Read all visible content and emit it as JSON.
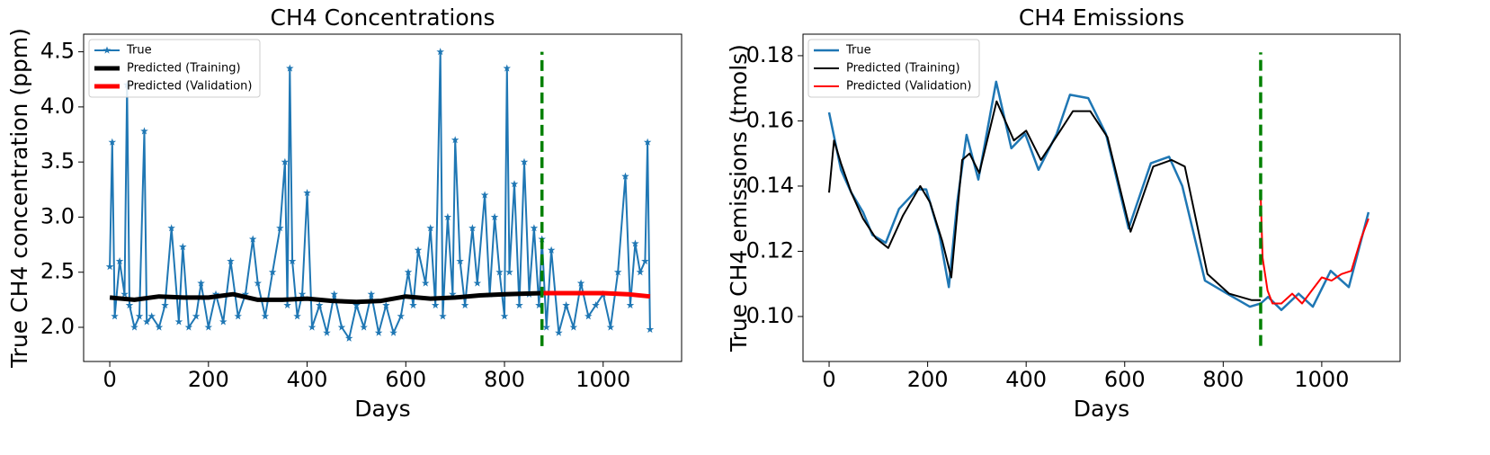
{
  "chart_data": [
    {
      "type": "line",
      "title": "CH4 Concentrations",
      "xlabel": "Days",
      "ylabel": "True CH4 concentration (ppm)",
      "xlim": [
        -53,
        1159
      ],
      "xticks": [
        0,
        200,
        400,
        600,
        800,
        1000
      ],
      "ylim": [
        1.69,
        4.66
      ],
      "yticks": [
        {
          "value": 2,
          "label": "2.0"
        },
        2.5,
        {
          "value": 3,
          "label": "3.0"
        },
        3.5,
        {
          "value": 4,
          "label": "4.0"
        },
        4.5
      ],
      "legend": "upper left",
      "vline": {
        "x": 876,
        "y": [
          1.83,
          4.5
        ],
        "color": "#008000"
      },
      "series": [
        {
          "name": "True",
          "color": "#1f77b4",
          "marker": "*",
          "width": 2,
          "x": [
            0,
            5,
            10,
            20,
            30,
            35,
            40,
            50,
            60,
            70,
            75,
            85,
            100,
            112,
            125,
            140,
            148,
            160,
            175,
            185,
            200,
            215,
            230,
            245,
            260,
            275,
            290,
            300,
            315,
            330,
            345,
            355,
            360,
            365,
            370,
            380,
            390,
            400,
            410,
            425,
            440,
            455,
            470,
            485,
            500,
            515,
            530,
            545,
            560,
            575,
            590,
            605,
            615,
            625,
            640,
            650,
            660,
            670,
            675,
            685,
            695,
            700,
            710,
            720,
            735,
            745,
            760,
            770,
            780,
            790,
            800,
            805,
            810,
            820,
            830,
            840,
            850,
            860,
            870,
            876,
            885,
            895,
            910,
            925,
            940,
            955,
            970,
            985,
            1000,
            1015,
            1030,
            1045,
            1055,
            1065,
            1075,
            1085,
            1090,
            1095
          ],
          "values": [
            2.55,
            3.68,
            2.1,
            2.6,
            2.3,
            4.2,
            2.2,
            2.0,
            2.1,
            3.78,
            2.05,
            2.1,
            2.0,
            2.2,
            2.9,
            2.05,
            2.73,
            2.0,
            2.1,
            2.4,
            2.0,
            2.3,
            2.05,
            2.6,
            2.1,
            2.3,
            2.8,
            2.4,
            2.1,
            2.5,
            2.9,
            3.5,
            2.2,
            4.35,
            2.6,
            2.1,
            2.3,
            3.22,
            2.0,
            2.2,
            1.95,
            2.3,
            2.0,
            1.9,
            2.2,
            2.0,
            2.3,
            1.95,
            2.2,
            1.95,
            2.1,
            2.5,
            2.2,
            2.7,
            2.4,
            2.9,
            2.2,
            4.5,
            2.1,
            3.0,
            2.3,
            3.7,
            2.6,
            2.2,
            2.9,
            2.4,
            3.2,
            2.3,
            3.0,
            2.5,
            2.1,
            4.35,
            2.5,
            3.3,
            2.2,
            3.5,
            2.3,
            2.9,
            2.2,
            2.8,
            2.0,
            2.7,
            1.95,
            2.2,
            2.0,
            2.4,
            2.1,
            2.2,
            2.3,
            2.0,
            2.5,
            3.37,
            2.2,
            2.76,
            2.5,
            2.6,
            3.68,
            1.98
          ]
        },
        {
          "name": "Predicted (Training)",
          "color": "#000000",
          "width": 5,
          "x": [
            0,
            50,
            100,
            150,
            200,
            250,
            300,
            350,
            400,
            450,
            500,
            550,
            600,
            650,
            700,
            750,
            800,
            876
          ],
          "values": [
            2.27,
            2.25,
            2.28,
            2.27,
            2.27,
            2.3,
            2.25,
            2.25,
            2.26,
            2.24,
            2.23,
            2.24,
            2.28,
            2.26,
            2.27,
            2.29,
            2.3,
            2.31
          ]
        },
        {
          "name": "Predicted (Validation)",
          "color": "#ff0000",
          "width": 5,
          "x": [
            876,
            900,
            950,
            1000,
            1050,
            1095
          ],
          "values": [
            2.31,
            2.31,
            2.31,
            2.31,
            2.3,
            2.28
          ]
        }
      ]
    },
    {
      "type": "line",
      "title": "CH4 Emissions",
      "xlabel": "Days",
      "ylabel": "True CH4 emissions (tmols)",
      "xlim": [
        -53,
        1159
      ],
      "xticks": [
        0,
        200,
        400,
        600,
        800,
        1000
      ],
      "ylim": [
        0.0862,
        0.1866
      ],
      "yticks": [
        {
          "value": 0.1,
          "label": "0.10"
        },
        0.12,
        0.14,
        0.16,
        0.18
      ],
      "legend": "upper left",
      "vline": {
        "x": 876,
        "y": [
          0.091,
          0.181
        ],
        "color": "#008000"
      },
      "series": [
        {
          "name": "True",
          "color": "#1f77b4",
          "width": 2.5,
          "x": [
            0,
            24,
            45,
            69,
            88,
            115,
            142,
            179,
            197,
            224,
            243,
            260,
            279,
            303,
            339,
            370,
            398,
            425,
            462,
            489,
            526,
            562,
            608,
            653,
            690,
            717,
            763,
            808,
            854,
            876,
            891,
            918,
            953,
            982,
            1018,
            1055,
            1095
          ],
          "values": [
            0.1626,
            0.145,
            0.138,
            0.132,
            0.125,
            0.1226,
            0.133,
            0.139,
            0.139,
            0.125,
            0.109,
            0.135,
            0.1557,
            0.142,
            0.172,
            0.1516,
            0.156,
            0.145,
            0.156,
            0.168,
            0.167,
            0.156,
            0.127,
            0.147,
            0.149,
            0.14,
            0.111,
            0.107,
            0.103,
            0.104,
            0.106,
            0.102,
            0.107,
            0.103,
            0.114,
            0.109,
            0.132
          ]
        },
        {
          "name": "Predicted (Training)",
          "color": "#000000",
          "width": 2,
          "x": [
            0,
            10,
            24,
            45,
            69,
            95,
            120,
            150,
            185,
            205,
            230,
            248,
            270,
            285,
            305,
            340,
            375,
            400,
            430,
            465,
            495,
            530,
            565,
            612,
            658,
            695,
            722,
            768,
            812,
            858,
            876
          ],
          "values": [
            0.138,
            0.154,
            0.147,
            0.138,
            0.13,
            0.124,
            0.121,
            0.131,
            0.14,
            0.135,
            0.123,
            0.112,
            0.148,
            0.15,
            0.144,
            0.166,
            0.154,
            0.157,
            0.148,
            0.156,
            0.163,
            0.163,
            0.155,
            0.126,
            0.146,
            0.148,
            0.146,
            0.113,
            0.107,
            0.105,
            0.105
          ]
        },
        {
          "name": "Predicted (Validation)",
          "color": "#ff0000",
          "width": 2,
          "x": [
            876,
            880,
            890,
            900,
            918,
            940,
            960,
            980,
            1000,
            1020,
            1040,
            1060,
            1080,
            1095
          ],
          "values": [
            0.137,
            0.118,
            0.108,
            0.104,
            0.104,
            0.107,
            0.104,
            0.108,
            0.112,
            0.111,
            0.113,
            0.114,
            0.124,
            0.13
          ]
        }
      ]
    }
  ]
}
